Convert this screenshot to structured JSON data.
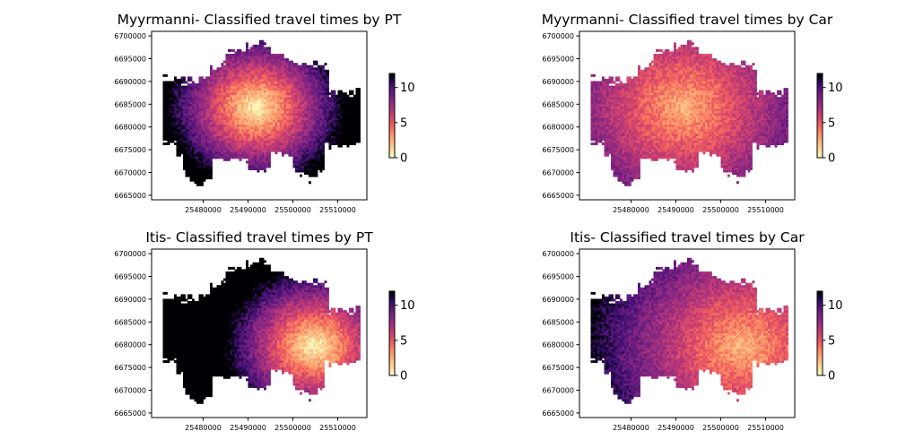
{
  "chart_data": [
    {
      "type": "heatmap",
      "title": "Myyrmanni- Classified travel times by PT",
      "origin": [
        25491500,
        6684000
      ],
      "spread": 1.15,
      "bias": 0.0,
      "xticks": [
        25480000,
        25490000,
        25500000,
        25510000
      ],
      "yticks": [
        6665000,
        6670000,
        6675000,
        6680000,
        6685000,
        6690000,
        6695000,
        6700000
      ],
      "xlim": [
        25468500,
        25516500
      ],
      "ylim": [
        6664000,
        6701000
      ],
      "colorbar": {
        "min": 0,
        "max": 12,
        "ticks": [
          0,
          5,
          10
        ]
      },
      "colormap": "magma_r"
    },
    {
      "type": "heatmap",
      "title": "Myyrmanni- Classified travel times by Car",
      "origin": [
        25491500,
        6684000
      ],
      "spread": 0.55,
      "bias": 1.0,
      "xticks": [
        25480000,
        25490000,
        25500000,
        25510000
      ],
      "yticks": [
        6665000,
        6670000,
        6675000,
        6680000,
        6685000,
        6690000,
        6695000,
        6700000
      ],
      "xlim": [
        25468500,
        25516500
      ],
      "ylim": [
        6664000,
        6701000
      ],
      "colorbar": {
        "min": 0,
        "max": 12,
        "ticks": [
          0,
          5,
          10
        ]
      },
      "colormap": "magma_r"
    },
    {
      "type": "heatmap",
      "title": "Itis- Classified travel times by PT",
      "origin": [
        25504500,
        6679500
      ],
      "spread": 1.15,
      "bias": 0.0,
      "xticks": [
        25480000,
        25490000,
        25500000,
        25510000
      ],
      "yticks": [
        6665000,
        6670000,
        6675000,
        6680000,
        6685000,
        6690000,
        6695000,
        6700000
      ],
      "xlim": [
        25468500,
        25516500
      ],
      "ylim": [
        6664000,
        6701000
      ],
      "colorbar": {
        "min": 0,
        "max": 12,
        "ticks": [
          0,
          5,
          10
        ]
      },
      "colormap": "magma_r"
    },
    {
      "type": "heatmap",
      "title": "Itis- Classified travel times by Car",
      "origin": [
        25504500,
        6679500
      ],
      "spread": 0.55,
      "bias": 1.0,
      "xticks": [
        25480000,
        25490000,
        25500000,
        25510000
      ],
      "yticks": [
        6665000,
        6670000,
        6675000,
        6680000,
        6685000,
        6690000,
        6695000,
        6700000
      ],
      "xlim": [
        25468500,
        25516500
      ],
      "ylim": [
        6664000,
        6701000
      ],
      "colorbar": {
        "min": 0,
        "max": 12,
        "ticks": [
          0,
          5,
          10
        ]
      },
      "colormap": "magma_r"
    }
  ]
}
